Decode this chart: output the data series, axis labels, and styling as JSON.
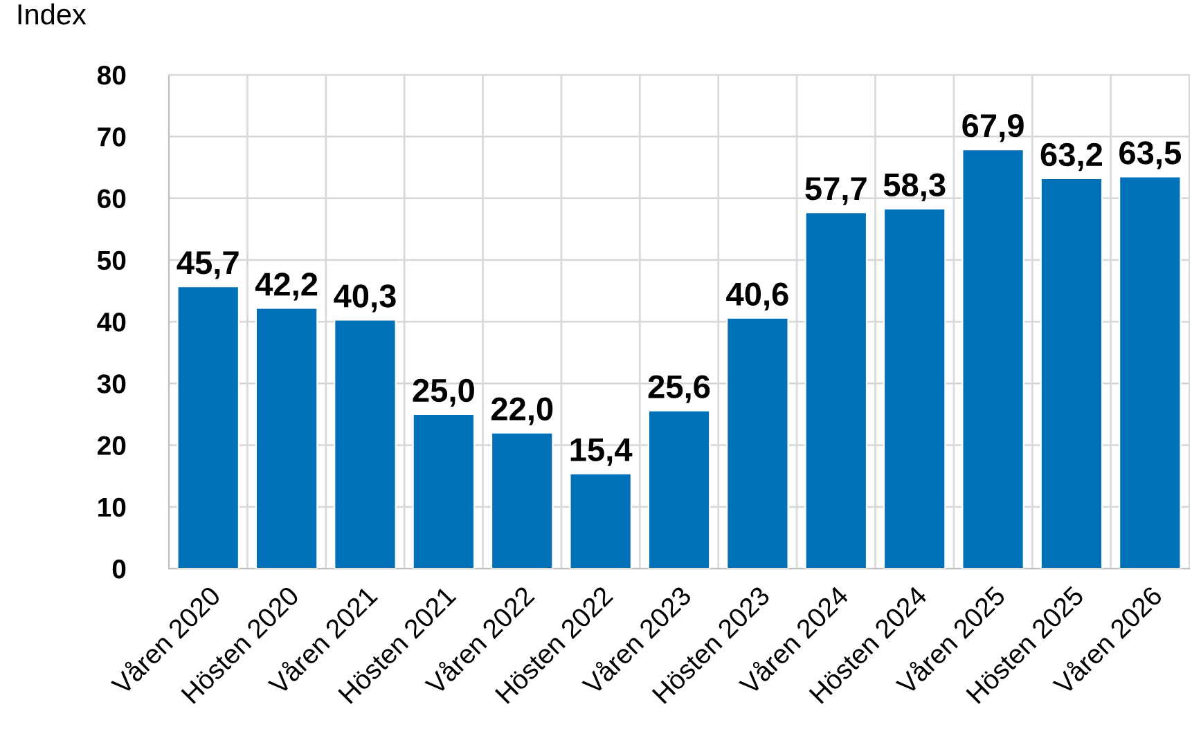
{
  "chart_data": {
    "type": "bar",
    "ylabel": "Index",
    "categories": [
      "Våren 2020",
      "Hösten 2020",
      "Våren 2021",
      "Hösten 2021",
      "Våren 2022",
      "Hösten 2022",
      "Våren 2023",
      "Hösten 2023",
      "Våren 2024",
      "Hösten 2024",
      "Våren 2025",
      "Hösten 2025",
      "Våren 2026"
    ],
    "values": [
      45.7,
      42.2,
      40.3,
      25.0,
      22.0,
      15.4,
      25.6,
      40.6,
      57.7,
      58.3,
      67.9,
      63.2,
      63.5
    ],
    "value_labels": [
      "45,7",
      "42,2",
      "40,3",
      "25,0",
      "22,0",
      "15,4",
      "25,6",
      "40,6",
      "57,7",
      "58,3",
      "67,9",
      "63,2",
      "63,5"
    ],
    "color": "#0070b8",
    "ylim": [
      0,
      80
    ],
    "yticks": [
      0,
      10,
      20,
      30,
      40,
      50,
      60,
      70,
      80
    ],
    "grid": true
  }
}
